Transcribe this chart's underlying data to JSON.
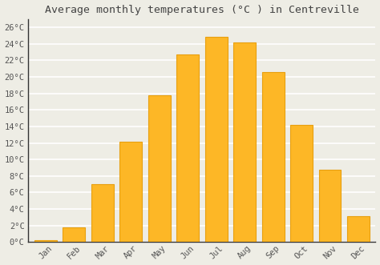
{
  "title": "Average monthly temperatures (°C ) in Centreville",
  "months": [
    "Jan",
    "Feb",
    "Mar",
    "Apr",
    "May",
    "Jun",
    "Jul",
    "Aug",
    "Sep",
    "Oct",
    "Nov",
    "Dec"
  ],
  "values": [
    0.2,
    1.8,
    7.0,
    12.2,
    17.8,
    22.7,
    24.9,
    24.2,
    20.6,
    14.2,
    8.8,
    3.1
  ],
  "bar_color": "#FDB726",
  "bar_edge_color": "#E8A010",
  "ylim": [
    0,
    27
  ],
  "yticks": [
    0,
    2,
    4,
    6,
    8,
    10,
    12,
    14,
    16,
    18,
    20,
    22,
    24,
    26
  ],
  "ytick_labels": [
    "0°C",
    "2°C",
    "4°C",
    "6°C",
    "8°C",
    "10°C",
    "12°C",
    "14°C",
    "16°C",
    "18°C",
    "20°C",
    "22°C",
    "24°C",
    "26°C"
  ],
  "background_color": "#eeede5",
  "grid_color": "#ffffff",
  "title_fontsize": 9.5,
  "tick_fontsize": 7.5,
  "spine_color": "#333333"
}
